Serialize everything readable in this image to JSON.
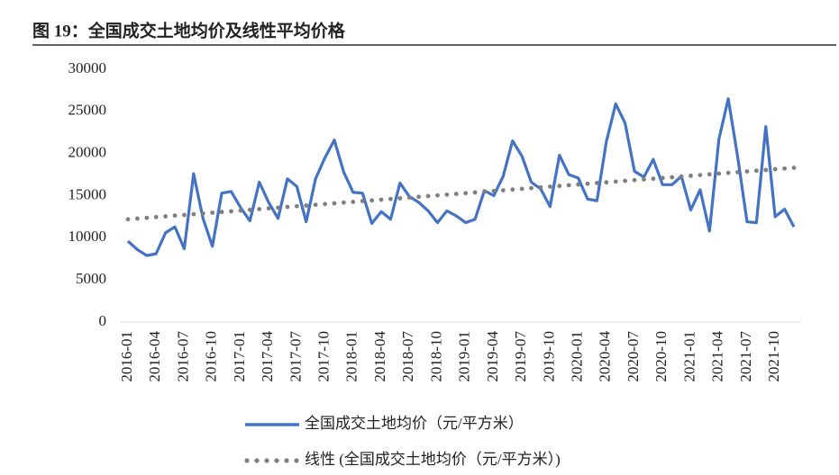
{
  "chart_data": {
    "type": "line",
    "title": "图 19：全国成交土地均价及线性平均价格",
    "categories": [
      "2016-01",
      null,
      null,
      "2016-04",
      null,
      null,
      "2016-07",
      null,
      null,
      "2016-10",
      null,
      null,
      "2017-01",
      null,
      null,
      "2017-04",
      null,
      null,
      "2017-07",
      null,
      null,
      "2017-10",
      null,
      null,
      "2018-01",
      null,
      null,
      "2018-04",
      null,
      null,
      "2018-07",
      null,
      null,
      "2018-10",
      null,
      null,
      "2019-01",
      null,
      null,
      "2019-04",
      null,
      null,
      "2019-07",
      null,
      null,
      "2019-10",
      null,
      null,
      "2020-01",
      null,
      null,
      "2020-04",
      null,
      null,
      "2020-07",
      null,
      null,
      "2020-10",
      null,
      null,
      "2021-01",
      null,
      null,
      "2021-04",
      null,
      null,
      "2021-07",
      null,
      null,
      "2021-10",
      null,
      null
    ],
    "series": [
      {
        "name": "全国成交土地均价（元/平方米）",
        "color": "#4472c4",
        "style": "solid",
        "values": [
          9600,
          8600,
          7900,
          8100,
          10600,
          11300,
          8700,
          17600,
          12300,
          9000,
          15300,
          15500,
          13600,
          12000,
          16600,
          14200,
          12300,
          17000,
          16100,
          11900,
          17000,
          19500,
          21600,
          17800,
          15400,
          15300,
          11700,
          13100,
          12200,
          16500,
          14900,
          14200,
          13200,
          11800,
          13200,
          12600,
          11800,
          12200,
          15600,
          15000,
          17300,
          21500,
          19700,
          16600,
          15800,
          13700,
          19800,
          17500,
          17100,
          14600,
          14400,
          21400,
          25900,
          23600,
          17900,
          17200,
          19300,
          16300,
          16300,
          17300,
          13300,
          15700,
          10800,
          21700,
          26500,
          19600,
          11900,
          11800,
          23200,
          12500,
          13400,
          11300
        ]
      },
      {
        "name": "线性 (全国成交土地均价（元/平方米）)",
        "color": "#7f7f7f",
        "style": "dotted",
        "values": [
          12200,
          12286,
          12372,
          12458,
          12544,
          12630,
          12716,
          12802,
          12888,
          12974,
          13060,
          13146,
          13232,
          13318,
          13404,
          13490,
          13576,
          13662,
          13748,
          13834,
          13920,
          14006,
          14092,
          14178,
          14264,
          14350,
          14436,
          14522,
          14608,
          14694,
          14780,
          14866,
          14952,
          15038,
          15124,
          15210,
          15296,
          15382,
          15468,
          15554,
          15640,
          15726,
          15812,
          15898,
          15984,
          16070,
          16156,
          16242,
          16328,
          16414,
          16500,
          16586,
          16672,
          16758,
          16844,
          16930,
          17016,
          17102,
          17188,
          17274,
          17360,
          17446,
          17532,
          17618,
          17704,
          17790,
          17876,
          17962,
          18048,
          18134,
          18220,
          18306
        ]
      }
    ],
    "ylim": [
      0,
      30000
    ],
    "yticks": [
      0,
      5000,
      10000,
      15000,
      20000,
      25000,
      30000
    ],
    "grid": false
  }
}
